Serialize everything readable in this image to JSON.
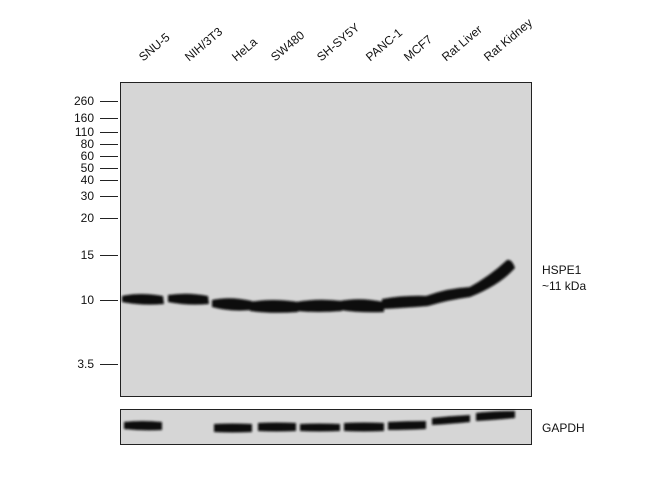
{
  "lanes": [
    "SNU-5",
    "NIH/3T3",
    "HeLa",
    "SW480",
    "SH-SY5Y",
    "PANC-1",
    "MCF7",
    "Rat Liver",
    "Rat Kidney"
  ],
  "mw_markers": [
    "260",
    "160",
    "110",
    "80",
    "60",
    "50",
    "40",
    "30",
    "20",
    "15",
    "10",
    "3.5"
  ],
  "target": {
    "name": "HSPE1",
    "size": "~11 kDa"
  },
  "loading_control": "GAPDH"
}
